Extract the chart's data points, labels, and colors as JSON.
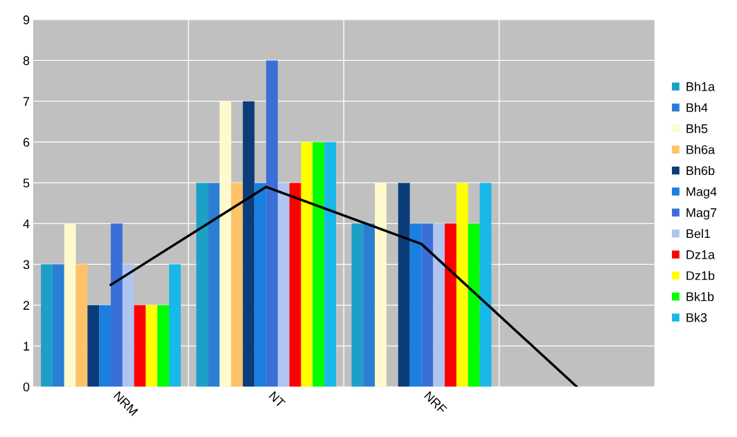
{
  "chart_data": {
    "type": "bar",
    "categories": [
      "NRM",
      "NT",
      "NRF",
      null
    ],
    "series": [
      {
        "name": "Bh1a",
        "color": "#1ca0c8",
        "values": [
          3,
          5,
          4,
          null
        ]
      },
      {
        "name": "Bh4",
        "color": "#2a7fd4",
        "values": [
          3,
          5,
          4,
          null
        ]
      },
      {
        "name": "Bh5",
        "color": "#fffacd",
        "values": [
          4,
          7,
          5,
          null
        ]
      },
      {
        "name": "Bh6a",
        "color": "#ffc266",
        "values": [
          3,
          5,
          null,
          null
        ]
      },
      {
        "name": "Bh6b",
        "color": "#0b3d7a",
        "values": [
          2,
          7,
          5,
          null
        ]
      },
      {
        "name": "Mag4",
        "color": "#1a7fe0",
        "values": [
          2,
          5,
          4,
          null
        ]
      },
      {
        "name": "Mag7",
        "color": "#3a6fd8",
        "values": [
          4,
          8,
          4,
          null
        ]
      },
      {
        "name": "Bel1",
        "color": "#b0c4f0",
        "values": [
          3,
          5,
          4,
          null
        ]
      },
      {
        "name": "Dz1a",
        "color": "#ff0000",
        "values": [
          2,
          5,
          4,
          null
        ]
      },
      {
        "name": "Dz1b",
        "color": "#ffff00",
        "values": [
          2,
          6,
          5,
          null
        ]
      },
      {
        "name": "Bk1b",
        "color": "#00ff00",
        "values": [
          2,
          6,
          4,
          null
        ]
      },
      {
        "name": "Bk3",
        "color": "#18b8e8",
        "values": [
          3,
          6,
          5,
          null
        ]
      },
      {
        "type": "line",
        "color": "#000000",
        "values": [
          2.5,
          4.9,
          3.5,
          0
        ]
      }
    ],
    "ylim": [
      0,
      9
    ],
    "yticks": [
      0,
      1,
      2,
      3,
      4,
      5,
      6,
      7,
      8,
      9
    ],
    "grid": true,
    "legend": "right"
  }
}
